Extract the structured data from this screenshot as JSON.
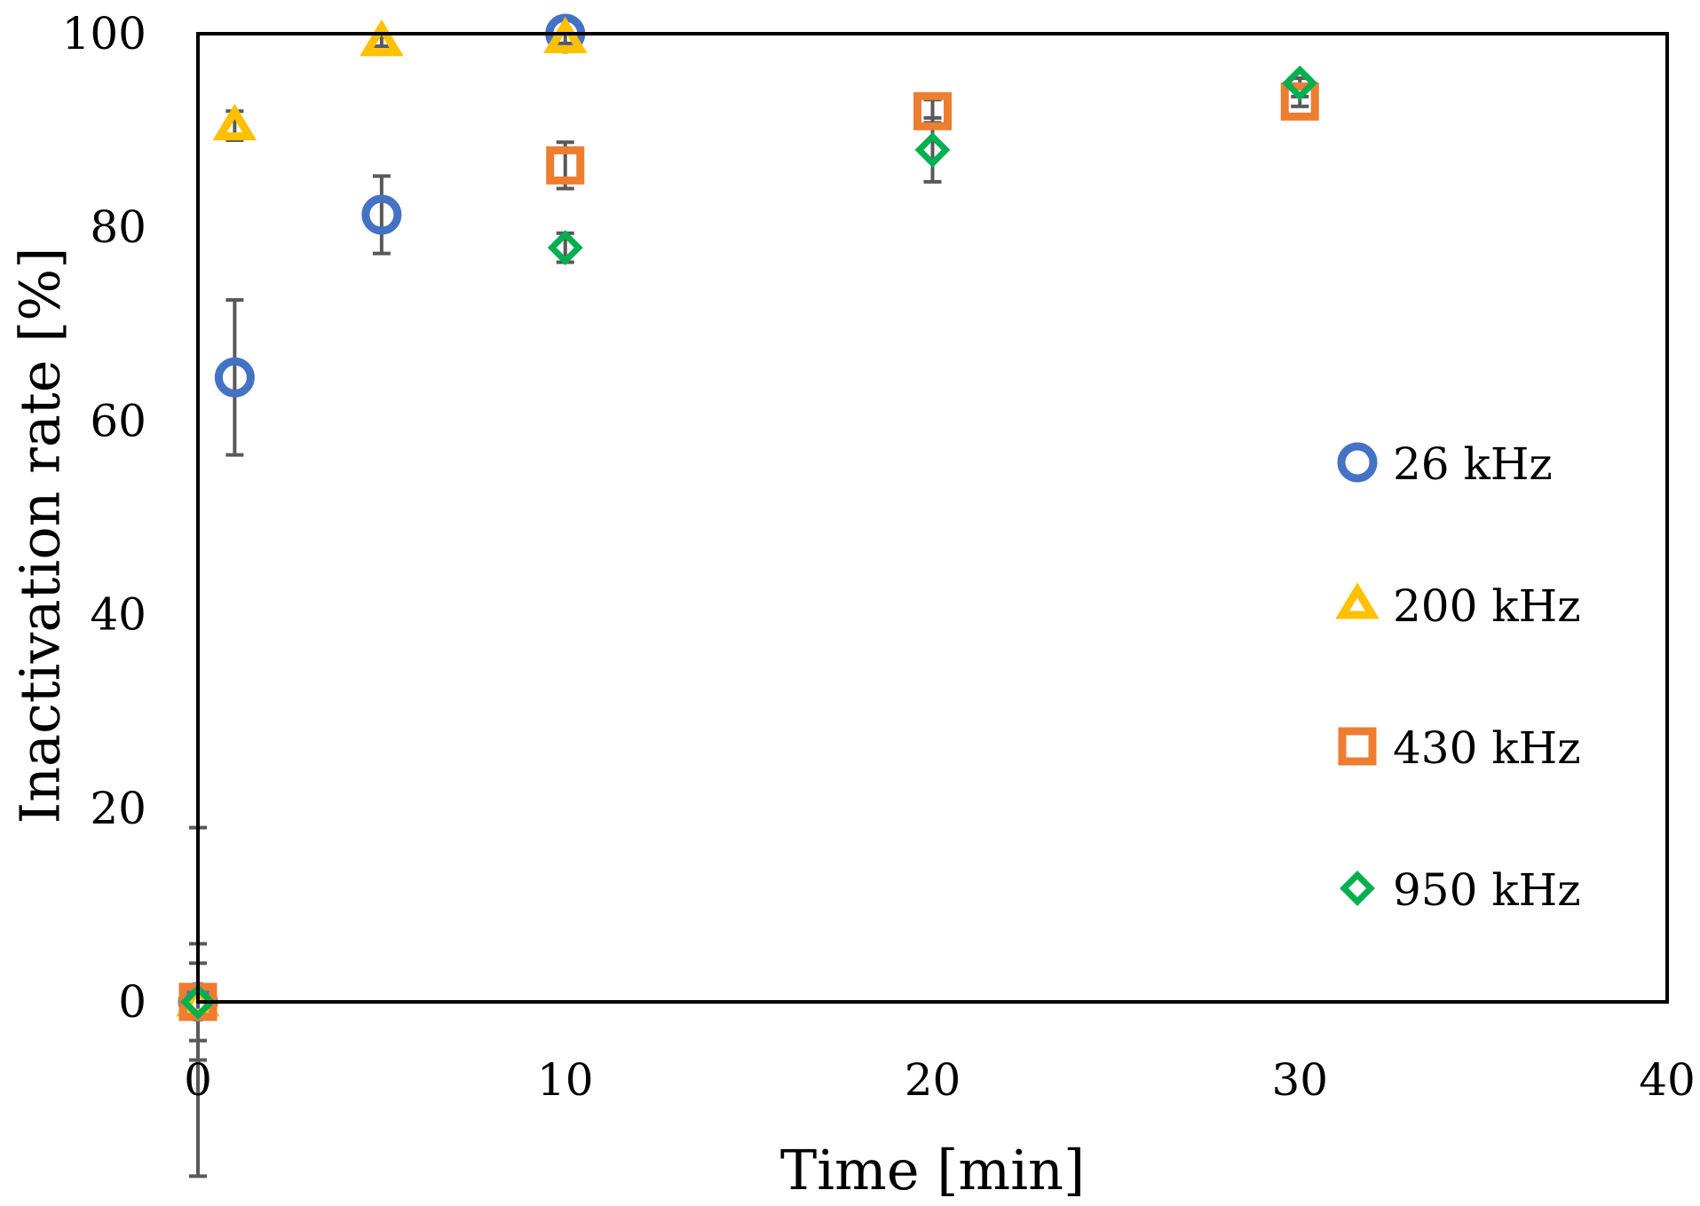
{
  "chart_data": {
    "type": "scatter",
    "xlabel": "Time [min]",
    "ylabel": "Inactivation rate [%]",
    "xlim": [
      0,
      40
    ],
    "ylim": [
      0,
      100
    ],
    "xticks": [
      0,
      10,
      20,
      30,
      40
    ],
    "yticks": [
      0,
      20,
      40,
      60,
      80,
      100
    ],
    "xtick_labels": [
      "0",
      "10",
      "20",
      "30",
      "40"
    ],
    "ytick_labels": [
      "0",
      "20",
      "40",
      "60",
      "80",
      "100"
    ],
    "grid": false,
    "legend_position": "right",
    "series": [
      {
        "name": "26 kHz",
        "marker": "circle",
        "color": "#4472C4",
        "points": [
          {
            "x": 0,
            "y": 0,
            "err": 18
          },
          {
            "x": 1,
            "y": 64.5,
            "err": 8
          },
          {
            "x": 5,
            "y": 81.3,
            "err": 4
          },
          {
            "x": 10,
            "y": 100,
            "err": 0
          }
        ]
      },
      {
        "name": "200 kHz",
        "marker": "triangle",
        "color": "#FFC000",
        "points": [
          {
            "x": 0,
            "y": 0,
            "err": 6
          },
          {
            "x": 1,
            "y": 90.5,
            "err": 1.5
          },
          {
            "x": 5,
            "y": 99.2,
            "err": 0.5
          },
          {
            "x": 10,
            "y": 99.5,
            "err": 0.5
          }
        ]
      },
      {
        "name": "430 kHz",
        "marker": "square",
        "color": "#ED7D31",
        "points": [
          {
            "x": 0,
            "y": 0,
            "err": 4
          },
          {
            "x": 10,
            "y": 86.4,
            "err": 2.4
          },
          {
            "x": 20,
            "y": 92,
            "err": 1.2
          },
          {
            "x": 30,
            "y": 93,
            "err": 0.5
          }
        ]
      },
      {
        "name": "950 kHz",
        "marker": "diamond",
        "color": "#00B050",
        "points": [
          {
            "x": 0,
            "y": 0,
            "err": 0
          },
          {
            "x": 10,
            "y": 77.9,
            "err": 1.5
          },
          {
            "x": 20,
            "y": 88,
            "err": 3.3
          },
          {
            "x": 30,
            "y": 94.9,
            "err": 0.5
          }
        ]
      }
    ]
  }
}
